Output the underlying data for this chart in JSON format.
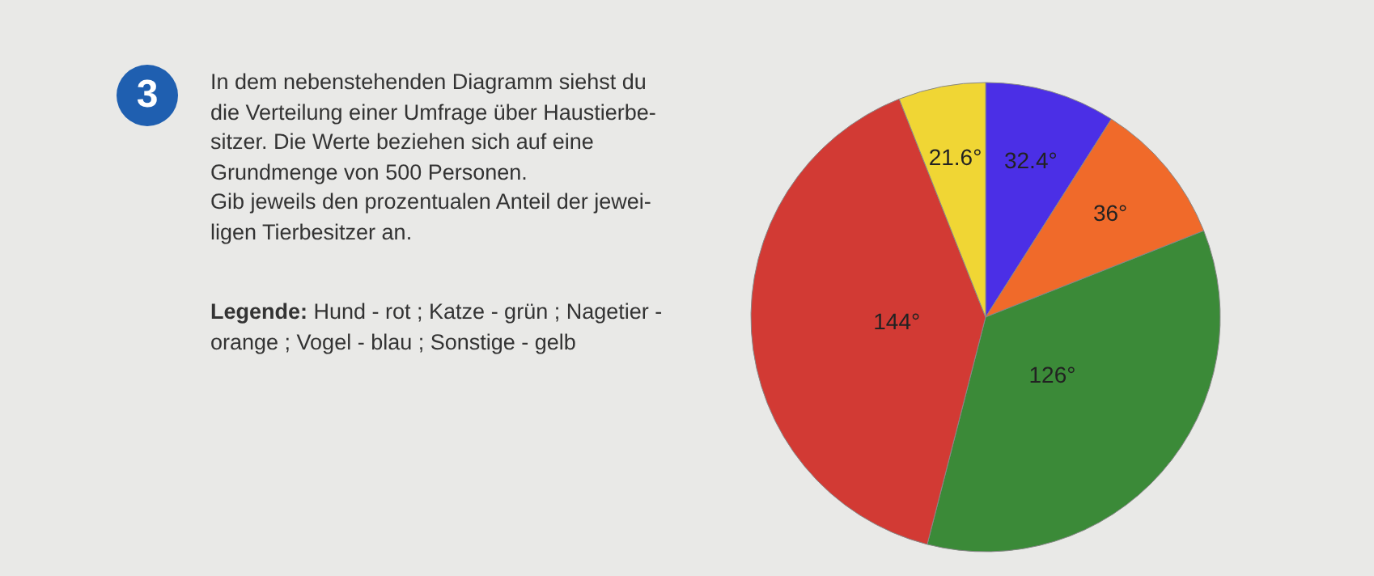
{
  "chart_data": {
    "type": "pie",
    "categories": [
      null,
      null,
      null,
      null,
      null
    ],
    "values": [
      32.4,
      36,
      126,
      144,
      21.6
    ],
    "colors": [
      "#4b2fe6",
      "#f06a2a",
      "#3b8a38",
      "#d23a34",
      "#f0d634"
    ],
    "value_labels": [
      "32.4°",
      "36°",
      "126°",
      "144°",
      "21.6°"
    ],
    "annotations": [
      "3",
      "In dem nebenstehenden Diagramm siehst du\ndie Verteilung einer Umfrage über Haustierbe-\nsitzer. Die Werte beziehen sich auf eine\nGrundmenge von 500 Personen.\nGib jeweils den prozentualen Anteil der jewei-\nligen Tierbesitzer an.",
      "Legende: Hund - rot ; Katze - grün ; Nagetier -\norange ; Vogel - blau ; Sonstige - gelb"
    ],
    "legend": false
  }
}
